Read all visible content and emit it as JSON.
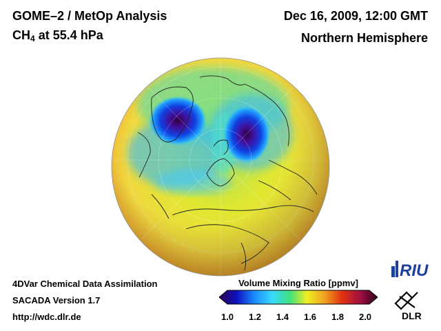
{
  "header": {
    "title": "GOME–2 / MetOp Analysis",
    "species_prefix": "CH",
    "species_subscript": "4",
    "species_suffix": " at 55.4 hPa",
    "datetime": "Dec 16, 2009, 12:00 GMT",
    "region": "Northern Hemisphere"
  },
  "footer": {
    "line1": "4DVar Chemical Data Assimilation",
    "line2": "SACADA Version 1.7",
    "line3": "http://wdc.dlr.de"
  },
  "colorbar": {
    "title": "Volume Mixing Ratio [ppmv]",
    "ticks": [
      "1.0",
      "1.2",
      "1.4",
      "1.6",
      "1.8",
      "2.0"
    ],
    "stops": [
      "#2a0050",
      "#1010c0",
      "#1a8cff",
      "#38d8ff",
      "#40e080",
      "#f0f020",
      "#f0a020",
      "#e03010",
      "#a01040",
      "#300020"
    ]
  },
  "logos": {
    "riu": "RIU",
    "dlr": "DLR"
  },
  "map": {
    "background_value_ppmv": 1.65,
    "low_regions": [
      "Greenland / Canadian Arctic",
      "Siberia"
    ]
  }
}
